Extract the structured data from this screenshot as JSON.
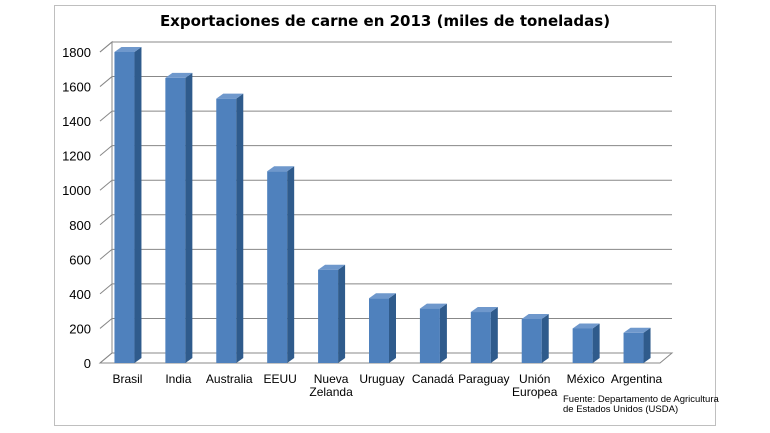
{
  "chart_data": {
    "type": "bar",
    "title": "Exportaciones de carne en 2013 (miles de toneladas)",
    "categories": [
      [
        "Brasil"
      ],
      [
        "India"
      ],
      [
        "Australia"
      ],
      [
        "EEUU"
      ],
      [
        "Nueva",
        "Zelanda"
      ],
      [
        "Uruguay"
      ],
      [
        "Canadá"
      ],
      [
        "Paraguay"
      ],
      [
        "Unión",
        "Europea"
      ],
      [
        "México"
      ],
      [
        "Argentina"
      ]
    ],
    "values": [
      1800,
      1650,
      1530,
      1110,
      540,
      375,
      315,
      295,
      255,
      200,
      175
    ],
    "yticks": [
      0,
      200,
      400,
      600,
      800,
      1000,
      1200,
      1400,
      1600,
      1800
    ],
    "ylim": [
      0,
      1800
    ],
    "xlabel": "",
    "ylabel": "",
    "grid": true,
    "legend": "none",
    "bar_color": "#4f81bd",
    "source_lines": [
      "Fuente: Departamento de Agricultura",
      "de Estados Unidos (USDA)"
    ]
  }
}
